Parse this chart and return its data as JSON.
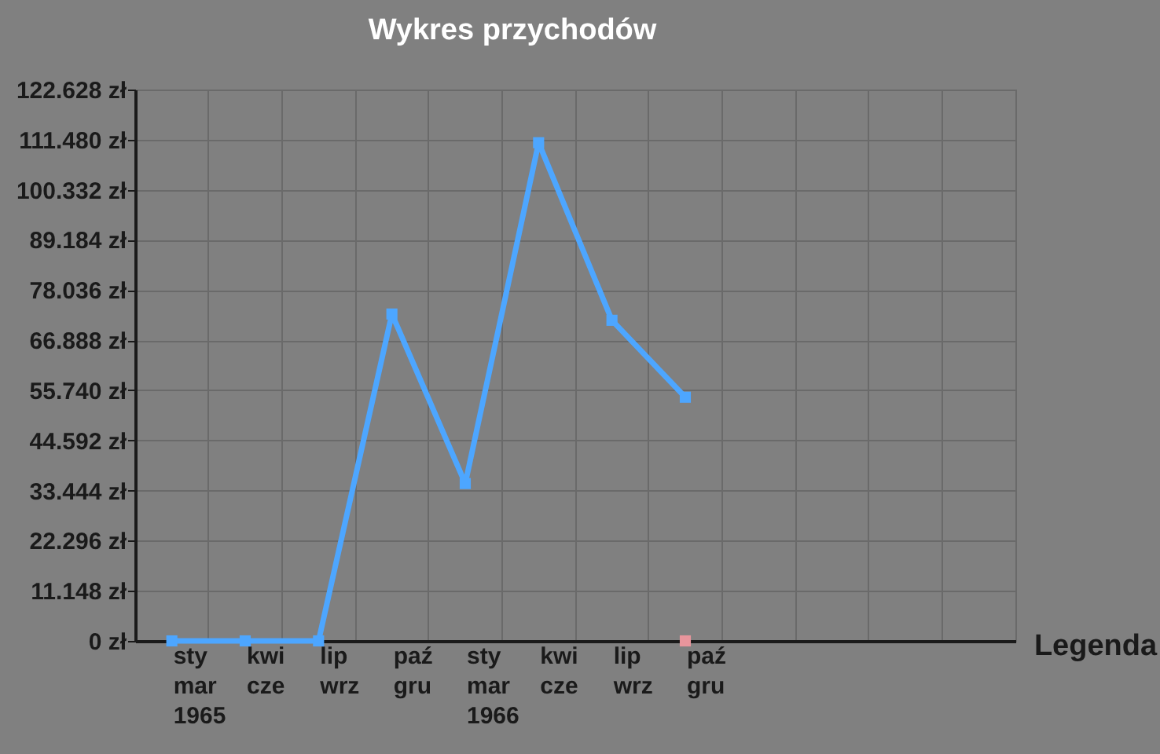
{
  "chart_data": {
    "type": "line",
    "title": "Wykres przychodów",
    "categories": [
      "sty\nmar\n1965",
      "kwi\ncze",
      "lip\nwrz",
      "paź\ngru",
      "sty\nmar\n1966",
      "kwi\ncze",
      "lip\nwrz",
      "paź\ngru",
      null,
      null,
      null,
      null
    ],
    "series": [
      {
        "color": "#4da6ff",
        "values": [
          0,
          0,
          0,
          72700,
          35000,
          110800,
          71300,
          54200,
          null,
          null,
          null,
          null
        ]
      },
      {
        "color": "#e8959c",
        "type": "scatter",
        "values": [
          null,
          null,
          null,
          null,
          null,
          null,
          null,
          0,
          null,
          null,
          null,
          null
        ]
      }
    ],
    "ylim": [
      0,
      122628
    ],
    "yticks": [
      {
        "value": 0,
        "label": "0 zł"
      },
      {
        "value": 11148,
        "label": "11.148 zł"
      },
      {
        "value": 22296,
        "label": "22.296 zł"
      },
      {
        "value": 33444,
        "label": "33.444 zł"
      },
      {
        "value": 44592,
        "label": "44.592 zł"
      },
      {
        "value": 55740,
        "label": "55.740 zł"
      },
      {
        "value": 66888,
        "label": "66.888 zł"
      },
      {
        "value": 78036,
        "label": "78.036 zł"
      },
      {
        "value": 89184,
        "label": "89.184 zł"
      },
      {
        "value": 100332,
        "label": "100.332 zł"
      },
      {
        "value": 111480,
        "label": "111.480 zł"
      },
      {
        "value": 122628,
        "label": "122.628 zł"
      }
    ],
    "grid": true,
    "marker": "square",
    "line_style": "solid",
    "annotations": [
      "Legenda"
    ]
  }
}
